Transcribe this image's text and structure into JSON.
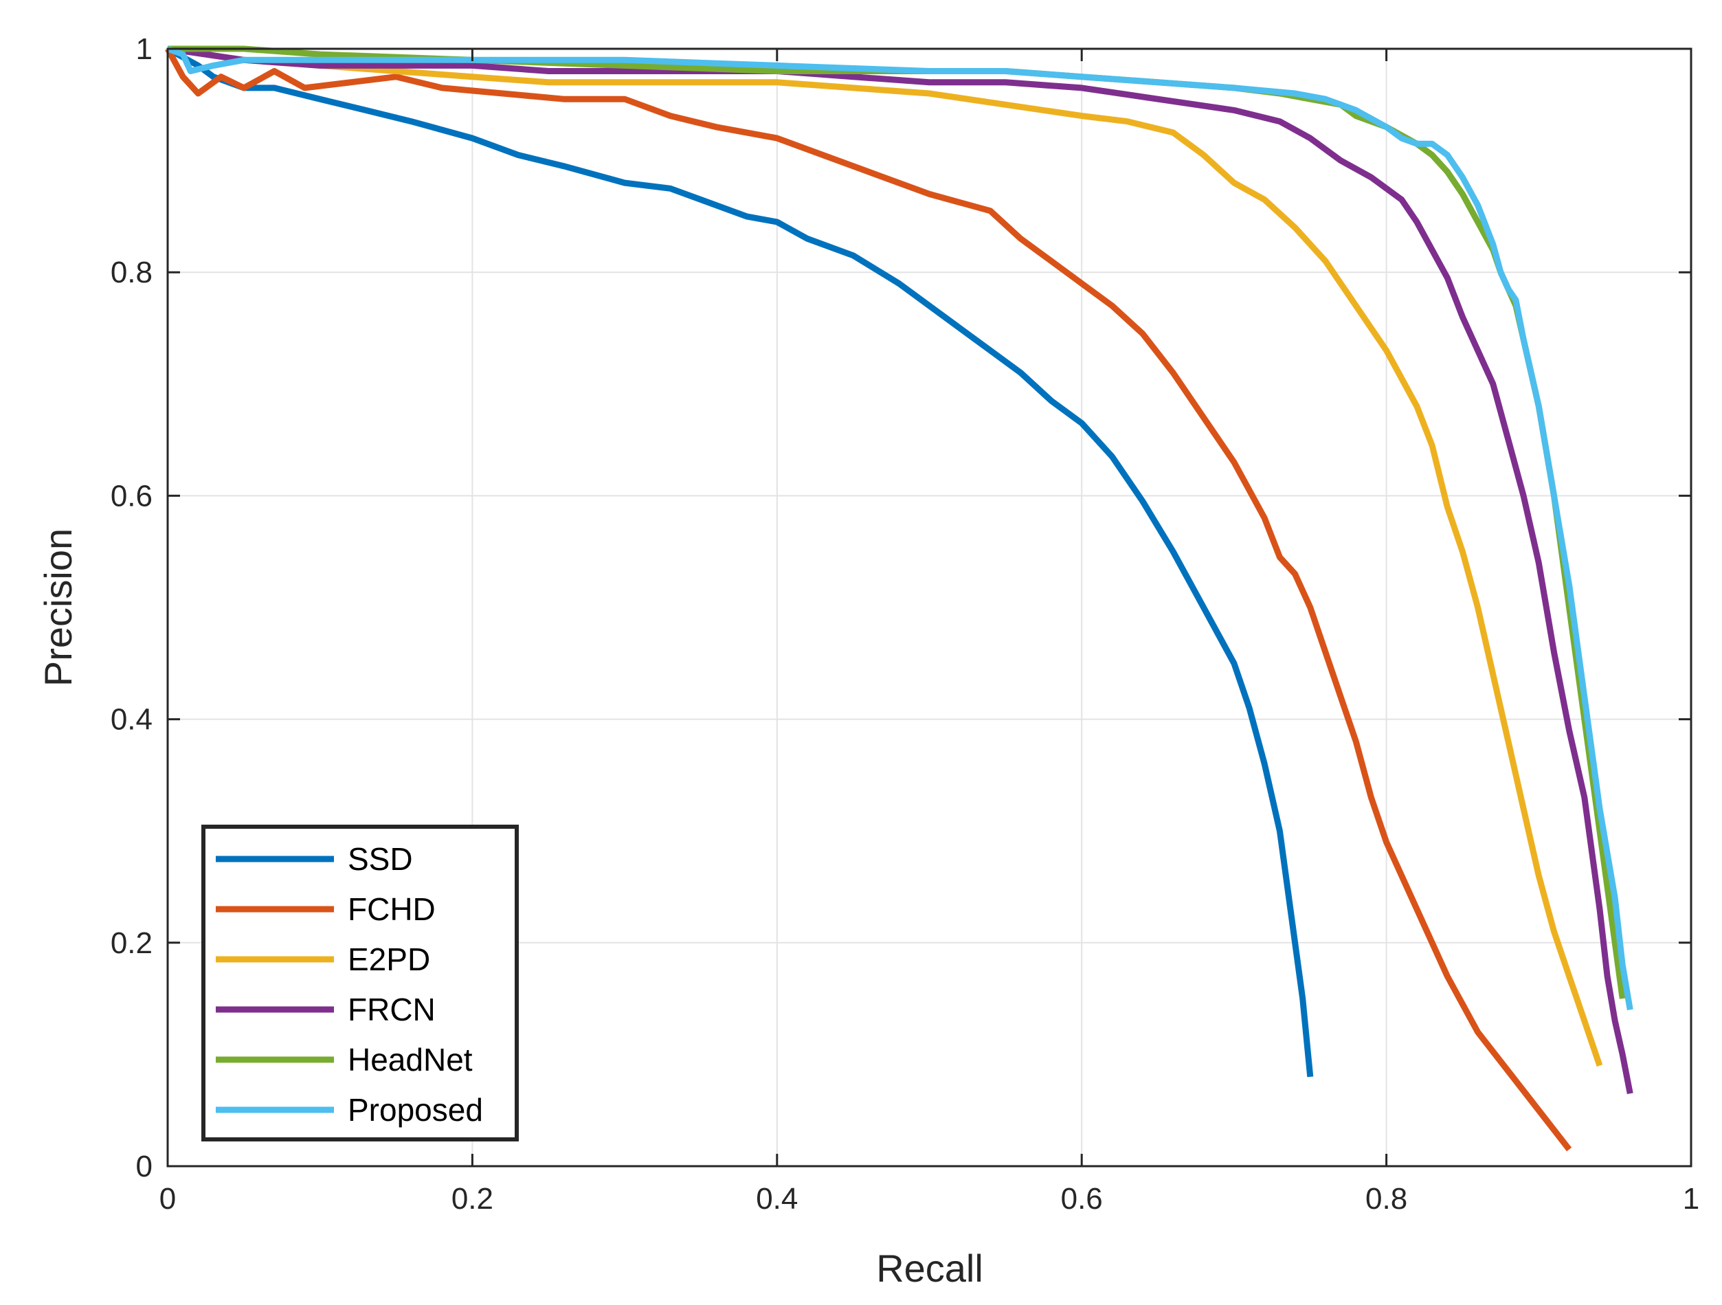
{
  "chart_data": {
    "type": "line",
    "title": "",
    "xlabel": "Recall",
    "ylabel": "Precision",
    "xlim": [
      0,
      1
    ],
    "ylim": [
      0,
      1
    ],
    "xticks": [
      0,
      0.2,
      0.4,
      0.6,
      0.8,
      1
    ],
    "yticks": [
      0,
      0.2,
      0.4,
      0.6,
      0.8,
      1
    ],
    "xtick_labels": [
      "0",
      "0.2",
      "0.4",
      "0.6",
      "0.8",
      "1"
    ],
    "ytick_labels": [
      "0",
      "0.2",
      "0.4",
      "0.6",
      "0.8",
      "1"
    ],
    "grid": true,
    "legend_position": "bottom-left",
    "series": [
      {
        "name": "SSD",
        "color": "#0072BD",
        "x": [
          0.0,
          0.02,
          0.03,
          0.05,
          0.07,
          0.1,
          0.13,
          0.16,
          0.2,
          0.23,
          0.26,
          0.3,
          0.33,
          0.36,
          0.38,
          0.4,
          0.42,
          0.45,
          0.48,
          0.5,
          0.52,
          0.54,
          0.56,
          0.58,
          0.6,
          0.62,
          0.64,
          0.66,
          0.68,
          0.7,
          0.71,
          0.72,
          0.73,
          0.735,
          0.74,
          0.745,
          0.75
        ],
        "y": [
          1.0,
          0.985,
          0.975,
          0.965,
          0.965,
          0.955,
          0.945,
          0.935,
          0.92,
          0.905,
          0.895,
          0.88,
          0.875,
          0.86,
          0.85,
          0.845,
          0.83,
          0.815,
          0.79,
          0.77,
          0.75,
          0.73,
          0.71,
          0.685,
          0.665,
          0.635,
          0.595,
          0.55,
          0.5,
          0.45,
          0.41,
          0.36,
          0.3,
          0.25,
          0.2,
          0.15,
          0.08
        ]
      },
      {
        "name": "FCHD",
        "color": "#D95319",
        "x": [
          0.0,
          0.01,
          0.02,
          0.035,
          0.05,
          0.07,
          0.09,
          0.12,
          0.15,
          0.18,
          0.22,
          0.26,
          0.3,
          0.33,
          0.36,
          0.4,
          0.43,
          0.46,
          0.5,
          0.54,
          0.56,
          0.58,
          0.6,
          0.62,
          0.64,
          0.66,
          0.68,
          0.7,
          0.72,
          0.73,
          0.74,
          0.75,
          0.76,
          0.77,
          0.78,
          0.79,
          0.8,
          0.82,
          0.84,
          0.86,
          0.88,
          0.9,
          0.92
        ],
        "y": [
          1.0,
          0.975,
          0.96,
          0.975,
          0.965,
          0.98,
          0.965,
          0.97,
          0.975,
          0.965,
          0.96,
          0.955,
          0.955,
          0.94,
          0.93,
          0.92,
          0.905,
          0.89,
          0.87,
          0.855,
          0.83,
          0.81,
          0.79,
          0.77,
          0.745,
          0.71,
          0.67,
          0.63,
          0.58,
          0.545,
          0.53,
          0.5,
          0.46,
          0.42,
          0.38,
          0.33,
          0.29,
          0.23,
          0.17,
          0.12,
          0.085,
          0.05,
          0.015
        ]
      },
      {
        "name": "E2PD",
        "color": "#EDB120",
        "x": [
          0.0,
          0.05,
          0.1,
          0.15,
          0.2,
          0.25,
          0.3,
          0.35,
          0.4,
          0.45,
          0.5,
          0.55,
          0.6,
          0.63,
          0.66,
          0.68,
          0.7,
          0.72,
          0.74,
          0.76,
          0.78,
          0.8,
          0.82,
          0.83,
          0.84,
          0.85,
          0.86,
          0.87,
          0.88,
          0.89,
          0.9,
          0.91,
          0.92,
          0.93,
          0.94
        ],
        "y": [
          1.0,
          0.99,
          0.985,
          0.98,
          0.975,
          0.97,
          0.97,
          0.97,
          0.97,
          0.965,
          0.96,
          0.95,
          0.94,
          0.935,
          0.925,
          0.905,
          0.88,
          0.865,
          0.84,
          0.81,
          0.77,
          0.73,
          0.68,
          0.645,
          0.59,
          0.55,
          0.5,
          0.44,
          0.38,
          0.32,
          0.26,
          0.21,
          0.17,
          0.13,
          0.09
        ]
      },
      {
        "name": "FRCN",
        "color": "#7E2F8E",
        "x": [
          0.0,
          0.05,
          0.1,
          0.15,
          0.2,
          0.25,
          0.3,
          0.35,
          0.4,
          0.45,
          0.5,
          0.55,
          0.6,
          0.65,
          0.7,
          0.73,
          0.75,
          0.77,
          0.79,
          0.8,
          0.81,
          0.82,
          0.83,
          0.84,
          0.85,
          0.86,
          0.87,
          0.88,
          0.89,
          0.9,
          0.91,
          0.92,
          0.93,
          0.935,
          0.94,
          0.945,
          0.95,
          0.955,
          0.96
        ],
        "y": [
          1.0,
          0.99,
          0.985,
          0.985,
          0.985,
          0.98,
          0.98,
          0.98,
          0.98,
          0.975,
          0.97,
          0.97,
          0.965,
          0.955,
          0.945,
          0.935,
          0.92,
          0.9,
          0.885,
          0.875,
          0.865,
          0.845,
          0.82,
          0.795,
          0.76,
          0.73,
          0.7,
          0.65,
          0.6,
          0.54,
          0.46,
          0.39,
          0.33,
          0.28,
          0.23,
          0.17,
          0.13,
          0.1,
          0.065
        ]
      },
      {
        "name": "HeadNet",
        "color": "#77AC30",
        "x": [
          0.0,
          0.05,
          0.1,
          0.2,
          0.3,
          0.4,
          0.5,
          0.55,
          0.6,
          0.65,
          0.7,
          0.73,
          0.75,
          0.77,
          0.78,
          0.8,
          0.82,
          0.83,
          0.84,
          0.85,
          0.86,
          0.87,
          0.875,
          0.88,
          0.885,
          0.89,
          0.9,
          0.91,
          0.92,
          0.93,
          0.94,
          0.95,
          0.955
        ],
        "y": [
          1.0,
          1.0,
          0.995,
          0.99,
          0.985,
          0.98,
          0.98,
          0.98,
          0.975,
          0.97,
          0.965,
          0.96,
          0.955,
          0.95,
          0.94,
          0.93,
          0.915,
          0.905,
          0.89,
          0.87,
          0.845,
          0.82,
          0.8,
          0.785,
          0.77,
          0.74,
          0.68,
          0.6,
          0.5,
          0.4,
          0.3,
          0.2,
          0.15
        ]
      },
      {
        "name": "Proposed",
        "color": "#4DBEEE",
        "x": [
          0.0,
          0.01,
          0.015,
          0.03,
          0.05,
          0.1,
          0.2,
          0.3,
          0.4,
          0.5,
          0.55,
          0.6,
          0.65,
          0.7,
          0.74,
          0.76,
          0.78,
          0.8,
          0.81,
          0.82,
          0.83,
          0.84,
          0.85,
          0.86,
          0.87,
          0.875,
          0.88,
          0.885,
          0.89,
          0.9,
          0.91,
          0.92,
          0.93,
          0.94,
          0.95,
          0.955,
          0.96
        ],
        "y": [
          1.0,
          0.995,
          0.98,
          0.985,
          0.99,
          0.99,
          0.99,
          0.99,
          0.985,
          0.98,
          0.98,
          0.975,
          0.97,
          0.965,
          0.96,
          0.955,
          0.945,
          0.93,
          0.92,
          0.915,
          0.915,
          0.905,
          0.885,
          0.86,
          0.825,
          0.8,
          0.785,
          0.775,
          0.74,
          0.68,
          0.6,
          0.52,
          0.42,
          0.32,
          0.24,
          0.18,
          0.14
        ]
      }
    ]
  }
}
